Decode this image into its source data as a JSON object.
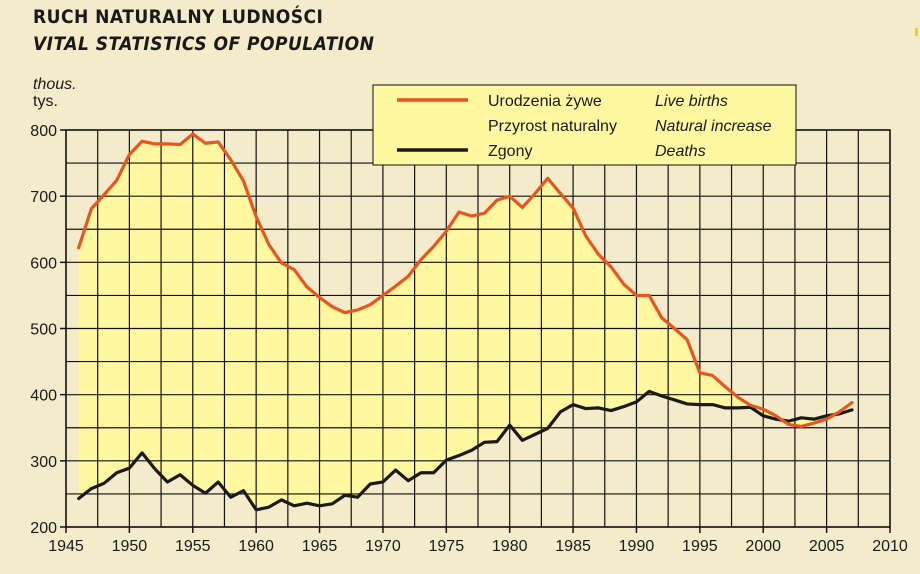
{
  "header": {
    "title": "RUCH NATURALNY LUDNOŚCI",
    "subtitle": "VITAL STATISTICS OF POPULATION",
    "unit_en": "thous.",
    "unit_pl": "tys."
  },
  "colors": {
    "background": "#F4EBCB",
    "fill": "#FFF8A0",
    "births": "#E8561E",
    "deaths": "#1a1a1a",
    "grid": "#111111"
  },
  "legend": {
    "items": [
      {
        "pl": "Urodzenia żywe",
        "en": "Live births",
        "kind": "line",
        "color": "#E8561E"
      },
      {
        "pl": "Przyrost naturalny",
        "en": "Natural increase",
        "kind": "area",
        "color": "#FFF8A0"
      },
      {
        "pl": "Zgony",
        "en": "Deaths",
        "kind": "line",
        "color": "#1a1a1a"
      }
    ]
  },
  "chart_data": {
    "type": "area",
    "title": "RUCH NATURALNY LUDNOŚCI / VITAL STATISTICS OF POPULATION",
    "ylabel": "thous. / tys.",
    "xlabel": "",
    "xlim": [
      1945,
      2010
    ],
    "ylim": [
      200,
      800
    ],
    "x_ticks": [
      1945,
      1950,
      1955,
      1960,
      1965,
      1970,
      1975,
      1980,
      1985,
      1990,
      1995,
      2000,
      2005,
      2010
    ],
    "y_ticks": [
      200,
      300,
      400,
      500,
      600,
      700,
      800
    ],
    "years": [
      1946,
      1947,
      1948,
      1949,
      1950,
      1951,
      1952,
      1953,
      1954,
      1955,
      1956,
      1957,
      1958,
      1959,
      1960,
      1961,
      1962,
      1963,
      1964,
      1965,
      1966,
      1967,
      1968,
      1969,
      1970,
      1971,
      1972,
      1973,
      1974,
      1975,
      1976,
      1977,
      1978,
      1979,
      1980,
      1981,
      1982,
      1983,
      1984,
      1985,
      1986,
      1987,
      1988,
      1989,
      1990,
      1991,
      1992,
      1993,
      1994,
      1995,
      1996,
      1997,
      1998,
      1999,
      2000,
      2001,
      2002,
      2003,
      2004,
      2005,
      2006,
      2007
    ],
    "series": [
      {
        "name": "Urodzenia żywe / Live births",
        "values": [
          622,
          681,
          702,
          724,
          763,
          783,
          779,
          779,
          778,
          794,
          780,
          782,
          755,
          723,
          669,
          627,
          599,
          589,
          563,
          547,
          533,
          524,
          528,
          536,
          550,
          564,
          579,
          604,
          624,
          647,
          676,
          670,
          674,
          694,
          700,
          683,
          704,
          727,
          704,
          682,
          640,
          612,
          593,
          567,
          550,
          550,
          516,
          500,
          483,
          433,
          429,
          412,
          396,
          384,
          378,
          368,
          355,
          352,
          357,
          363,
          374,
          388
        ]
      },
      {
        "name": "Zgony / Deaths",
        "values": [
          243,
          258,
          266,
          282,
          289,
          312,
          288,
          268,
          279,
          263,
          251,
          268,
          245,
          255,
          226,
          230,
          241,
          232,
          236,
          232,
          235,
          248,
          245,
          265,
          268,
          286,
          270,
          282,
          282,
          301,
          308,
          316,
          328,
          329,
          354,
          331,
          340,
          349,
          374,
          385,
          379,
          380,
          376,
          382,
          389,
          405,
          398,
          392,
          386,
          385,
          385,
          380,
          380,
          381,
          368,
          363,
          360,
          365,
          363,
          368,
          371,
          377
        ]
      }
    ],
    "legend": [
      "Urodzenia żywe / Live births",
      "Przyrost naturalny / Natural increase",
      "Zgony / Deaths"
    ],
    "annotations": [
      "Przyrost naturalny / Natural increase = area between Live births and Deaths"
    ]
  }
}
